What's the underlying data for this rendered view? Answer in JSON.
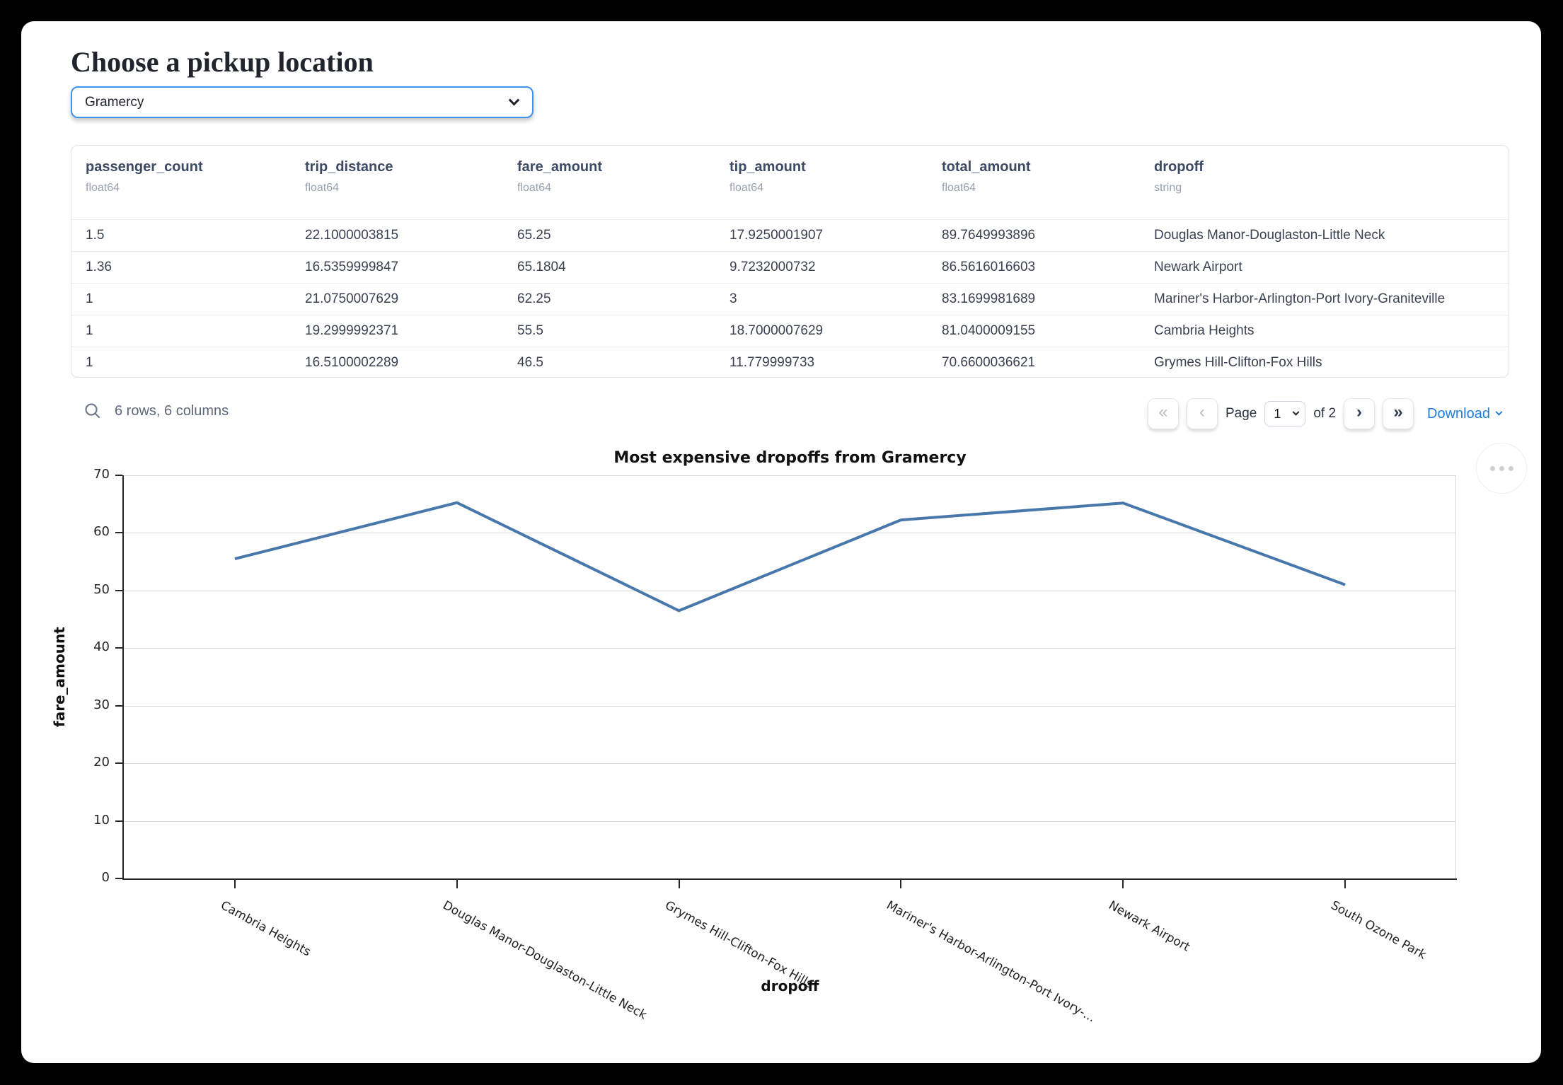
{
  "page": {
    "title": "Choose a pickup location"
  },
  "pickup_select": {
    "value": "Gramercy"
  },
  "table": {
    "columns": [
      {
        "name": "passenger_count",
        "type": "float64"
      },
      {
        "name": "trip_distance",
        "type": "float64"
      },
      {
        "name": "fare_amount",
        "type": "float64"
      },
      {
        "name": "tip_amount",
        "type": "float64"
      },
      {
        "name": "total_amount",
        "type": "float64"
      },
      {
        "name": "dropoff",
        "type": "string"
      }
    ],
    "rows": [
      [
        "1.5",
        "22.1000003815",
        "65.25",
        "17.9250001907",
        "89.7649993896",
        "Douglas Manor-Douglaston-Little Neck"
      ],
      [
        "1.36",
        "16.5359999847",
        "65.1804",
        "9.7232000732",
        "86.5616016603",
        "Newark Airport"
      ],
      [
        "1",
        "21.0750007629",
        "62.25",
        "3",
        "83.1699981689",
        "Mariner's Harbor-Arlington-Port Ivory-Graniteville"
      ],
      [
        "1",
        "19.2999992371",
        "55.5",
        "18.7000007629",
        "81.0400009155",
        "Cambria Heights"
      ],
      [
        "1",
        "16.5100002289",
        "46.5",
        "11.779999733",
        "70.6600036621",
        "Grymes Hill-Clifton-Fox Hills"
      ]
    ]
  },
  "footer": {
    "summary": "6 rows, 6 columns",
    "first_icon": "«",
    "prev_icon": "‹",
    "next_icon": "›",
    "last_icon": "»",
    "page_label": "Page",
    "page_value": "1",
    "of_label": "of 2",
    "download_label": "Download"
  },
  "chart_data": {
    "type": "line",
    "title": "Most expensive dropoffs from Gramercy",
    "xlabel": "dropoff",
    "ylabel": "fare_amount",
    "categories": [
      "Cambria Heights",
      "Douglas Manor-Douglaston-Little Neck",
      "Grymes Hill-Clifton-Fox Hills",
      "Mariner's Harbor-Arlington-Port Ivory-Graniteville",
      "Newark Airport",
      "South Ozone Park"
    ],
    "tick_labels": [
      "Cambria Heights",
      "Douglas Manor-Douglaston-Little Neck",
      "Grymes Hill-Clifton-Fox Hills",
      "Mariner's Harbor-Arlington-Port Ivory-...",
      "Newark Airport",
      "South Ozone Park"
    ],
    "series": [
      {
        "name": "fare_amount",
        "values": [
          55.5,
          65.25,
          46.5,
          62.25,
          65.1804,
          51
        ]
      }
    ],
    "ylim": [
      0,
      70
    ],
    "yticks": [
      0,
      10,
      20,
      30,
      40,
      50,
      60,
      70
    ],
    "grid": true,
    "legend": "none",
    "line_color": "#4878ab"
  },
  "colors": {
    "accent_blue": "#1f7ce0",
    "select_focus_border": "#3b94ef",
    "line": "#4878ab"
  }
}
